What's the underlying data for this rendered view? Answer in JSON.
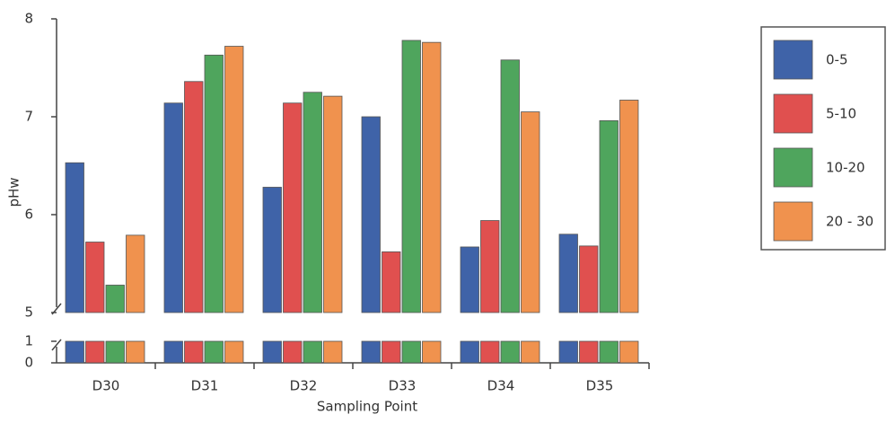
{
  "chart_data": {
    "type": "bar",
    "y_label": "pHw",
    "x_label": "Sampling Point",
    "categories": [
      "D30",
      "D31",
      "D32",
      "D33",
      "D34",
      "D35"
    ],
    "series": [
      {
        "name": "0-5",
        "color": "#3f63a8",
        "values": [
          6.53,
          7.14,
          6.28,
          7.0,
          5.67,
          5.8
        ]
      },
      {
        "name": "5-10",
        "color": "#e0504f",
        "values": [
          5.72,
          7.36,
          7.14,
          5.62,
          5.94,
          5.68
        ]
      },
      {
        "name": "10-20",
        "color": "#4fa55d",
        "values": [
          5.28,
          7.63,
          7.25,
          7.78,
          7.58,
          6.96
        ]
      },
      {
        "name": "20 - 30",
        "color": "#f0924e",
        "values": [
          5.79,
          7.72,
          7.21,
          7.76,
          7.05,
          7.17
        ]
      }
    ],
    "ylim": [
      5,
      8
    ],
    "yticks": [
      5,
      6,
      7,
      8
    ],
    "lower_ylim": [
      0,
      1
    ],
    "lower_yticks": [
      0,
      1
    ],
    "legend": "right"
  }
}
